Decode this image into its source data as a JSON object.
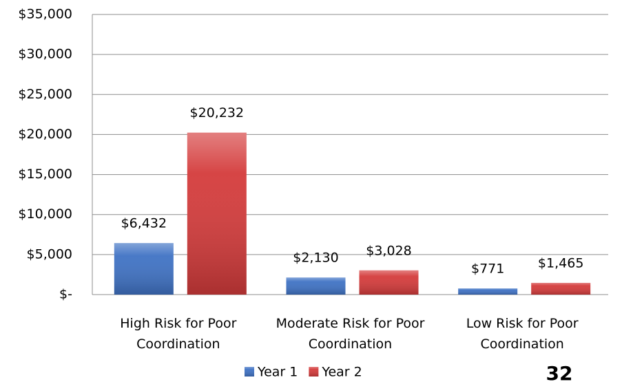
{
  "chart_data": {
    "type": "bar",
    "categories": [
      "High Risk for Poor Coordination",
      "Moderate Risk for Poor Coordination",
      "Low Risk for Poor Coordination"
    ],
    "series": [
      {
        "name": "Year 1",
        "color": "#3f72c4",
        "values": [
          6432,
          2130,
          771
        ],
        "value_labels": [
          "$6,432",
          "$2,130",
          "$771"
        ]
      },
      {
        "name": "Year 2",
        "color": "#d43b3b",
        "values": [
          20232,
          3028,
          1465
        ],
        "value_labels": [
          "$20,232",
          "$3,028",
          "$1,465"
        ]
      }
    ],
    "ylim": [
      0,
      35000
    ],
    "yticks": [
      {
        "value": 0,
        "label": "$-"
      },
      {
        "value": 5000,
        "label": "$5,000"
      },
      {
        "value": 10000,
        "label": "$10,000"
      },
      {
        "value": 15000,
        "label": "$15,000"
      },
      {
        "value": 20000,
        "label": "$20,000"
      },
      {
        "value": 25000,
        "label": "$25,000"
      },
      {
        "value": 30000,
        "label": "$30,000"
      },
      {
        "value": 35000,
        "label": "$35,000"
      }
    ],
    "grid": true,
    "legend": "bottom",
    "page_number": "32"
  }
}
